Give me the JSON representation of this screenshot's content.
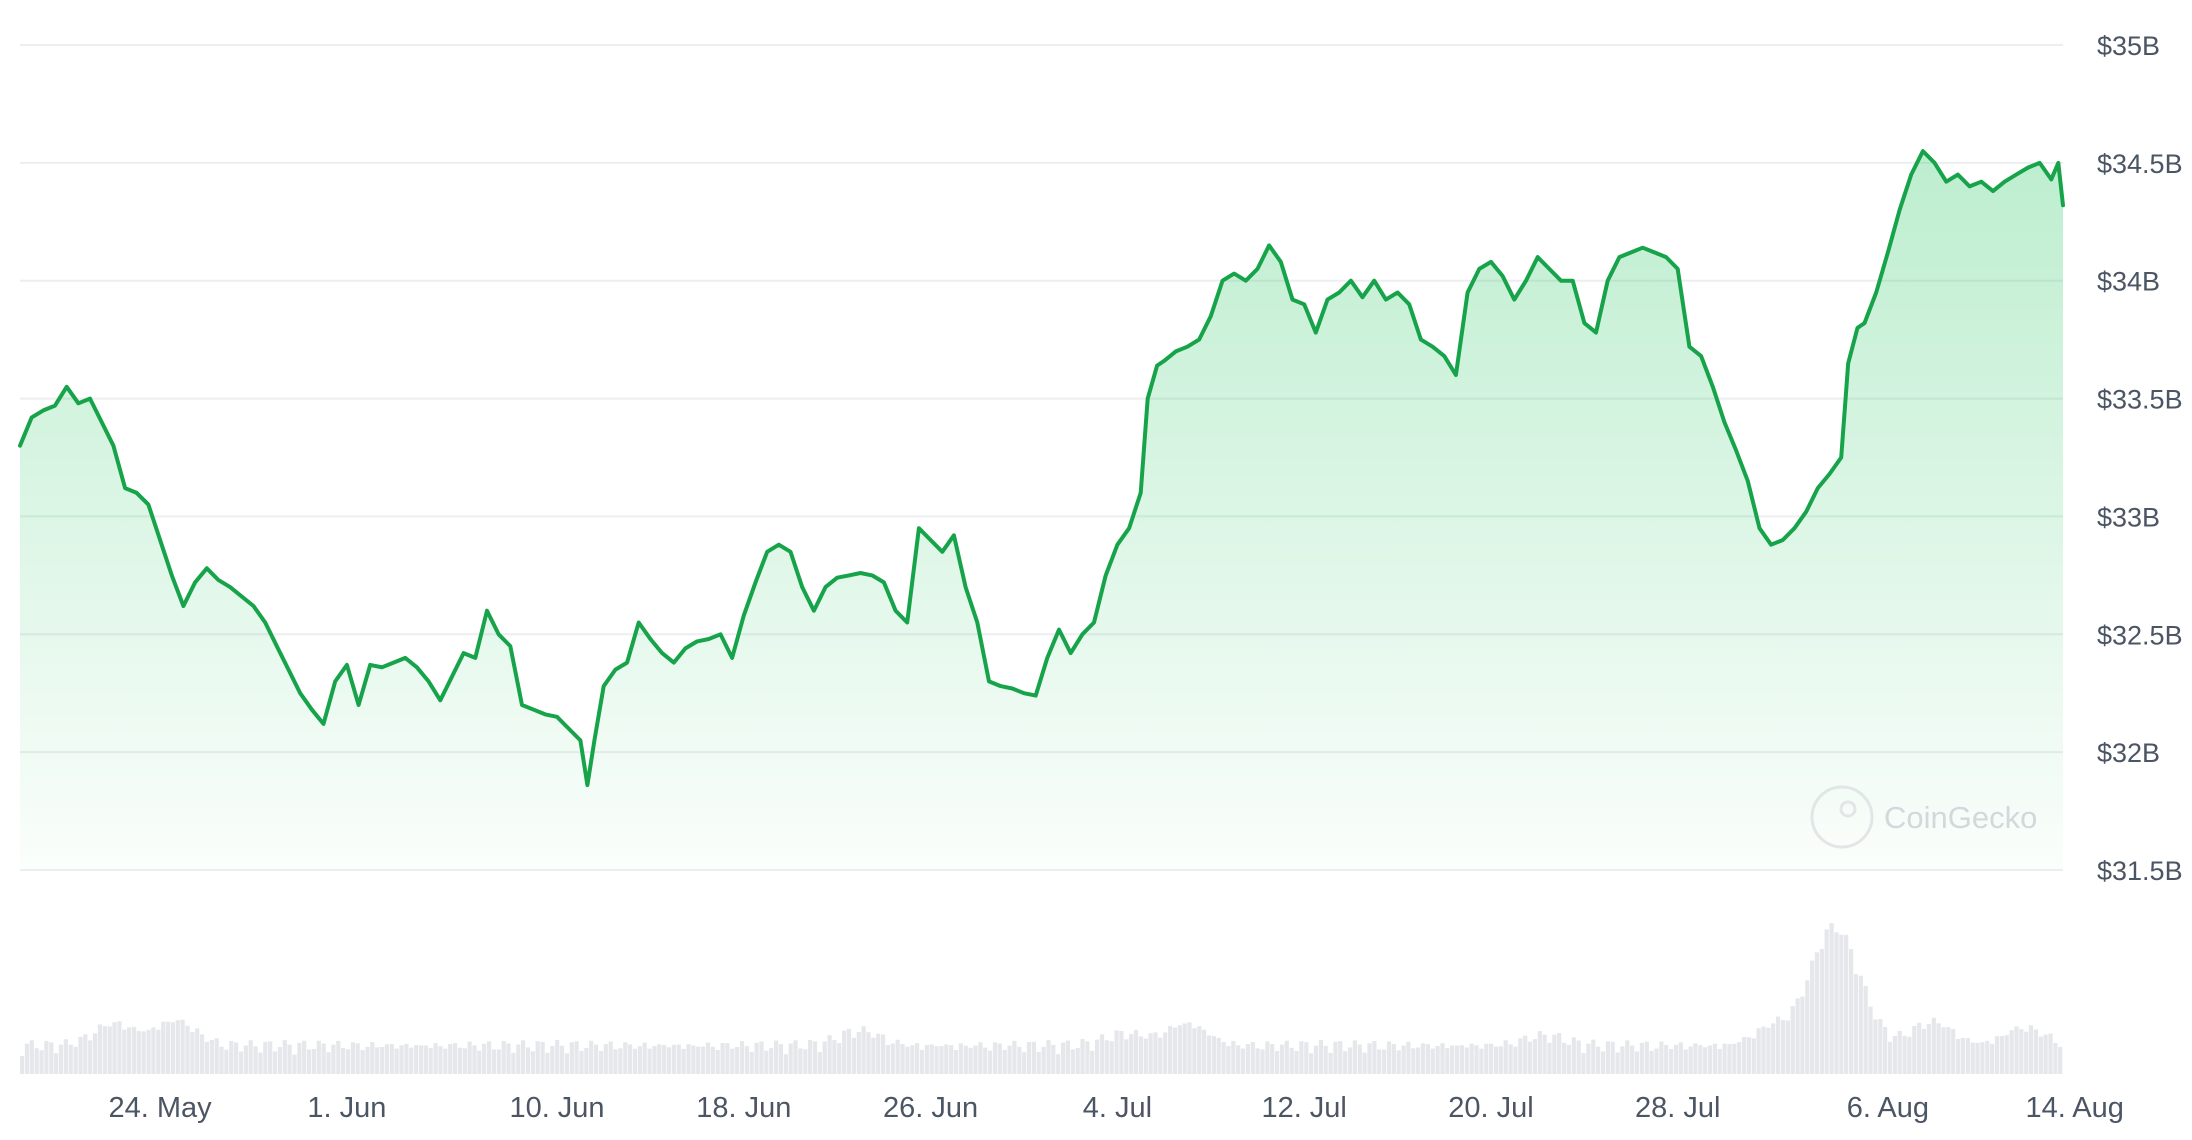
{
  "chart_data": {
    "type": "area",
    "title": "",
    "xlabel": "",
    "ylabel": "",
    "ylim": [
      31.5,
      35.0
    ],
    "y_ticks": [
      {
        "value": 35.0,
        "label": "$35B"
      },
      {
        "value": 34.5,
        "label": "$34.5B"
      },
      {
        "value": 34.0,
        "label": "$34B"
      },
      {
        "value": 33.5,
        "label": "$33.5B"
      },
      {
        "value": 33.0,
        "label": "$33B"
      },
      {
        "value": 32.5,
        "label": "$32.5B"
      },
      {
        "value": 32.0,
        "label": "$32B"
      },
      {
        "value": 31.5,
        "label": "$31.5B"
      }
    ],
    "x_range": [
      0,
      87
    ],
    "x_ticks": [
      {
        "x": 6,
        "label": "24. May"
      },
      {
        "x": 14,
        "label": "1. Jun"
      },
      {
        "x": 23,
        "label": "10. Jun"
      },
      {
        "x": 31,
        "label": "18. Jun"
      },
      {
        "x": 39,
        "label": "26. Jun"
      },
      {
        "x": 47,
        "label": "4. Jul"
      },
      {
        "x": 55,
        "label": "12. Jul"
      },
      {
        "x": 63,
        "label": "20. Jul"
      },
      {
        "x": 71,
        "label": "28. Jul"
      },
      {
        "x": 80,
        "label": "6. Aug"
      },
      {
        "x": 88,
        "label": "14. Aug"
      }
    ],
    "grid": true,
    "legend": "none",
    "colors": {
      "line": "#16a34a",
      "fill": "#22c55e",
      "volume": "#e5e7eb",
      "grid": "#eceef1",
      "axis_text": "#4b5563"
    },
    "series": [
      {
        "values": [
          [
            0,
            33.3
          ],
          [
            0.5,
            33.42
          ],
          [
            1,
            33.45
          ],
          [
            1.5,
            33.47
          ],
          [
            2,
            33.55
          ],
          [
            2.5,
            33.48
          ],
          [
            3,
            33.5
          ],
          [
            3.5,
            33.4
          ],
          [
            4,
            33.3
          ],
          [
            4.5,
            33.12
          ],
          [
            5,
            33.1
          ],
          [
            5.5,
            33.05
          ],
          [
            6,
            32.9
          ],
          [
            6.5,
            32.75
          ],
          [
            7,
            32.62
          ],
          [
            7.5,
            32.72
          ],
          [
            8,
            32.78
          ],
          [
            8.5,
            32.73
          ],
          [
            9,
            32.7
          ],
          [
            9.5,
            32.66
          ],
          [
            10,
            32.62
          ],
          [
            10.5,
            32.55
          ],
          [
            11,
            32.45
          ],
          [
            11.5,
            32.35
          ],
          [
            12,
            32.25
          ],
          [
            12.5,
            32.18
          ],
          [
            13,
            32.12
          ],
          [
            13.5,
            32.3
          ],
          [
            14,
            32.37
          ],
          [
            14.5,
            32.2
          ],
          [
            15,
            32.37
          ],
          [
            15.5,
            32.36
          ],
          [
            16,
            32.38
          ],
          [
            16.5,
            32.4
          ],
          [
            17,
            32.36
          ],
          [
            17.5,
            32.3
          ],
          [
            18,
            32.22
          ],
          [
            18.5,
            32.32
          ],
          [
            19,
            32.42
          ],
          [
            19.5,
            32.4
          ],
          [
            20,
            32.6
          ],
          [
            20.5,
            32.5
          ],
          [
            21,
            32.45
          ],
          [
            21.5,
            32.2
          ],
          [
            22,
            32.18
          ],
          [
            22.5,
            32.16
          ],
          [
            23,
            32.15
          ],
          [
            23.5,
            32.1
          ],
          [
            24,
            32.05
          ],
          [
            24.3,
            31.86
          ],
          [
            24.6,
            32.05
          ],
          [
            25,
            32.28
          ],
          [
            25.5,
            32.35
          ],
          [
            26,
            32.38
          ],
          [
            26.5,
            32.55
          ],
          [
            27,
            32.48
          ],
          [
            27.5,
            32.42
          ],
          [
            28,
            32.38
          ],
          [
            28.5,
            32.44
          ],
          [
            29,
            32.47
          ],
          [
            29.5,
            32.48
          ],
          [
            30,
            32.5
          ],
          [
            30.5,
            32.4
          ],
          [
            31,
            32.58
          ],
          [
            31.5,
            32.72
          ],
          [
            32,
            32.85
          ],
          [
            32.5,
            32.88
          ],
          [
            33,
            32.85
          ],
          [
            33.5,
            32.7
          ],
          [
            34,
            32.6
          ],
          [
            34.5,
            32.7
          ],
          [
            35,
            32.74
          ],
          [
            35.5,
            32.75
          ],
          [
            36,
            32.76
          ],
          [
            36.5,
            32.75
          ],
          [
            37,
            32.72
          ],
          [
            37.5,
            32.6
          ],
          [
            38,
            32.55
          ],
          [
            38.5,
            32.95
          ],
          [
            39,
            32.9
          ],
          [
            39.5,
            32.85
          ],
          [
            40,
            32.92
          ],
          [
            40.5,
            32.7
          ],
          [
            41,
            32.55
          ],
          [
            41.5,
            32.3
          ],
          [
            42,
            32.28
          ],
          [
            42.5,
            32.27
          ],
          [
            43,
            32.25
          ],
          [
            43.5,
            32.24
          ],
          [
            44,
            32.4
          ],
          [
            44.5,
            32.52
          ],
          [
            45,
            32.42
          ],
          [
            45.5,
            32.5
          ],
          [
            46,
            32.55
          ],
          [
            46.5,
            32.75
          ],
          [
            47,
            32.88
          ],
          [
            47.5,
            32.95
          ],
          [
            48,
            33.1
          ],
          [
            48.3,
            33.5
          ],
          [
            48.7,
            33.64
          ],
          [
            49,
            33.66
          ],
          [
            49.5,
            33.7
          ],
          [
            50,
            33.72
          ],
          [
            50.5,
            33.75
          ],
          [
            51,
            33.85
          ],
          [
            51.5,
            34.0
          ],
          [
            52,
            34.03
          ],
          [
            52.5,
            34.0
          ],
          [
            53,
            34.05
          ],
          [
            53.5,
            34.15
          ],
          [
            54,
            34.08
          ],
          [
            54.5,
            33.92
          ],
          [
            55,
            33.9
          ],
          [
            55.5,
            33.78
          ],
          [
            56,
            33.92
          ],
          [
            56.5,
            33.95
          ],
          [
            57,
            34.0
          ],
          [
            57.5,
            33.93
          ],
          [
            58,
            34.0
          ],
          [
            58.5,
            33.92
          ],
          [
            59,
            33.95
          ],
          [
            59.5,
            33.9
          ],
          [
            60,
            33.75
          ],
          [
            60.5,
            33.72
          ],
          [
            61,
            33.68
          ],
          [
            61.5,
            33.6
          ],
          [
            62,
            33.95
          ],
          [
            62.5,
            34.05
          ],
          [
            63,
            34.08
          ],
          [
            63.5,
            34.02
          ],
          [
            64,
            33.92
          ],
          [
            64.5,
            34.0
          ],
          [
            65,
            34.1
          ],
          [
            65.5,
            34.05
          ],
          [
            66,
            34.0
          ],
          [
            66.5,
            34.0
          ],
          [
            67,
            33.82
          ],
          [
            67.5,
            33.78
          ],
          [
            68,
            34.0
          ],
          [
            68.5,
            34.1
          ],
          [
            69,
            34.12
          ],
          [
            69.5,
            34.14
          ],
          [
            70,
            34.12
          ],
          [
            70.5,
            34.1
          ],
          [
            71,
            34.05
          ],
          [
            71.5,
            33.72
          ],
          [
            72,
            33.68
          ],
          [
            72.5,
            33.55
          ],
          [
            73,
            33.4
          ],
          [
            73.5,
            33.28
          ],
          [
            74,
            33.15
          ],
          [
            74.5,
            32.95
          ],
          [
            75,
            32.88
          ],
          [
            75.5,
            32.9
          ],
          [
            76,
            32.95
          ],
          [
            76.5,
            33.02
          ],
          [
            77,
            33.12
          ],
          [
            77.5,
            33.18
          ],
          [
            78,
            33.25
          ],
          [
            78.3,
            33.65
          ],
          [
            78.7,
            33.8
          ],
          [
            79,
            33.82
          ],
          [
            79.5,
            33.95
          ],
          [
            80,
            34.12
          ],
          [
            80.5,
            34.3
          ],
          [
            81,
            34.45
          ],
          [
            81.5,
            34.55
          ],
          [
            82,
            34.5
          ],
          [
            82.5,
            34.42
          ],
          [
            83,
            34.45
          ],
          [
            83.5,
            34.4
          ],
          [
            84,
            34.42
          ],
          [
            84.5,
            34.38
          ],
          [
            85,
            34.42
          ],
          [
            85.5,
            34.45
          ],
          [
            86,
            34.48
          ],
          [
            86.5,
            34.5
          ],
          [
            87,
            34.43
          ],
          [
            87.3,
            34.5
          ],
          [
            87.5,
            34.32
          ]
        ]
      }
    ],
    "watermark": "CoinGecko"
  }
}
